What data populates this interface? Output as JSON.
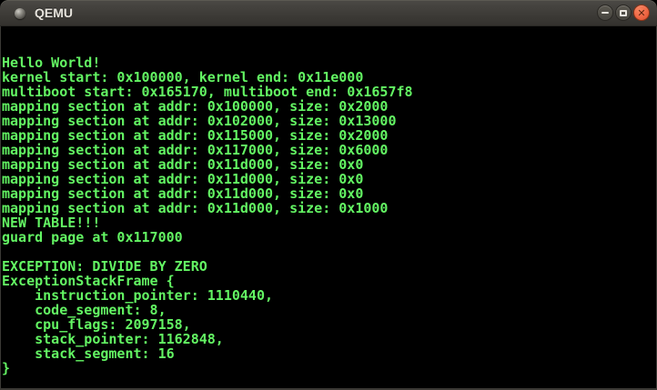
{
  "window": {
    "title": "QEMU",
    "controls": {
      "minimize": "minimize",
      "maximize": "maximize",
      "close_glyph": "✕"
    }
  },
  "colors": {
    "terminal_foreground": "#63f563",
    "terminal_background": "#000000",
    "titlebar": "#403e3a",
    "close_button": "#ee6644"
  },
  "terminal": {
    "columns": 80,
    "rows": 25,
    "lines": [
      "",
      "",
      "Hello World!",
      "kernel start: 0x100000, kernel end: 0x11e000",
      "multiboot start: 0x165170, multiboot end: 0x1657f8",
      "mapping section at addr: 0x100000, size: 0x2000",
      "mapping section at addr: 0x102000, size: 0x13000",
      "mapping section at addr: 0x115000, size: 0x2000",
      "mapping section at addr: 0x117000, size: 0x6000",
      "mapping section at addr: 0x11d000, size: 0x0",
      "mapping section at addr: 0x11d000, size: 0x0",
      "mapping section at addr: 0x11d000, size: 0x0",
      "mapping section at addr: 0x11d000, size: 0x1000",
      "NEW TABLE!!!",
      "guard page at 0x117000",
      "",
      "EXCEPTION: DIVIDE BY ZERO",
      "ExceptionStackFrame {",
      "    instruction_pointer: 1110440,",
      "    code_segment: 8,",
      "    cpu_flags: 2097158,",
      "    stack_pointer: 1162848,",
      "    stack_segment: 16",
      "}",
      ""
    ]
  }
}
